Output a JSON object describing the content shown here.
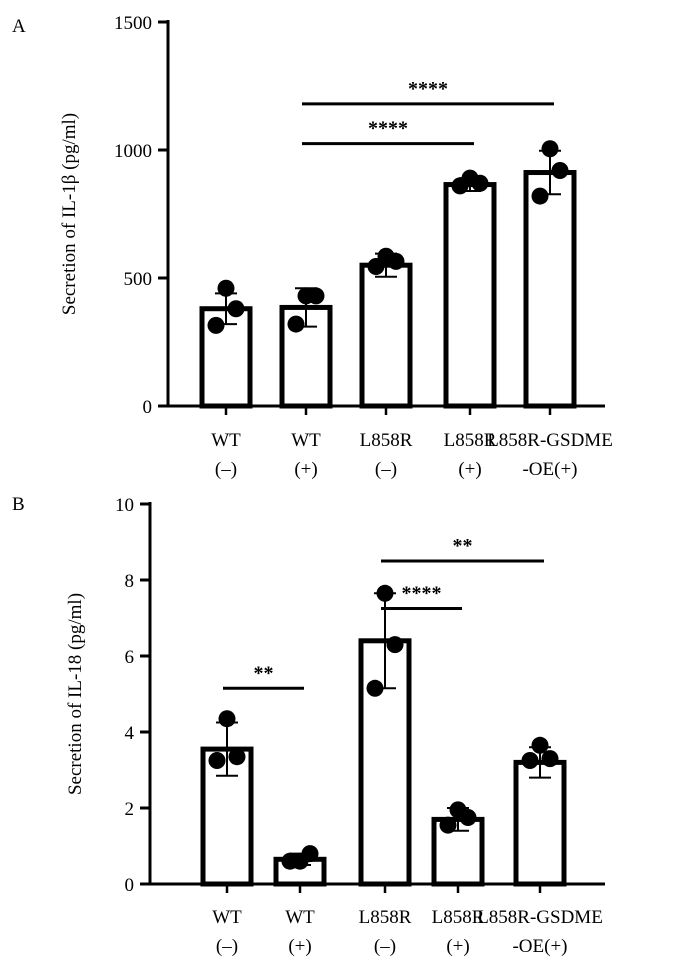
{
  "chart_data": [
    {
      "panel": "A",
      "type": "bar",
      "ylabel": "Secretion of IL-1β (pg/ml)",
      "ylim": [
        0,
        1500
      ],
      "yticks": [
        0,
        500,
        1000,
        1500
      ],
      "categories": [
        {
          "line1": "WT",
          "line2": "(–)"
        },
        {
          "line1": "WT",
          "line2": "(+)"
        },
        {
          "line1": "L858R",
          "line2": "(–)"
        },
        {
          "line1": "L858R",
          "line2": "(+)"
        },
        {
          "line1": "L858R-GSDME",
          "line2": "-OE(+)"
        }
      ],
      "values": [
        380,
        385,
        550,
        865,
        912
      ],
      "errors": [
        60,
        75,
        45,
        25,
        85
      ],
      "points": [
        [
          460,
          380,
          315
        ],
        [
          430,
          430,
          320
        ],
        [
          585,
          565,
          545
        ],
        [
          890,
          870,
          860
        ],
        [
          1005,
          920,
          820
        ]
      ],
      "significance": [
        {
          "from": 1,
          "to": 3,
          "label": "****",
          "y": 1025
        },
        {
          "from": 1,
          "to": 4,
          "label": "****",
          "y": 1180
        }
      ]
    },
    {
      "panel": "B",
      "type": "bar",
      "ylabel": "Secretion of IL-18 (pg/ml)",
      "ylim": [
        0,
        10
      ],
      "yticks": [
        0,
        2,
        4,
        6,
        8,
        10
      ],
      "categories": [
        {
          "line1": "WT",
          "line2": "(–)"
        },
        {
          "line1": "WT",
          "line2": "(+)"
        },
        {
          "line1": "L858R",
          "line2": "(–)"
        },
        {
          "line1": "L858R",
          "line2": "(+)"
        },
        {
          "line1": "L858R-GSDME",
          "line2": "-OE(+)"
        }
      ],
      "values": [
        3.55,
        0.65,
        6.4,
        1.7,
        3.2
      ],
      "errors": [
        0.7,
        0.15,
        1.25,
        0.3,
        0.4
      ],
      "points": [
        [
          4.35,
          3.35,
          3.25
        ],
        [
          0.6,
          0.8,
          0.6
        ],
        [
          7.65,
          6.3,
          5.15
        ],
        [
          1.95,
          1.75,
          1.55
        ],
        [
          3.65,
          3.3,
          3.25
        ]
      ],
      "significance": [
        {
          "from": 0,
          "to": 1,
          "label": "**",
          "y": 5.15
        },
        {
          "from": 2,
          "to": 3,
          "label": "****",
          "y": 7.25
        },
        {
          "from": 2,
          "to": 4,
          "label": "**",
          "y": 8.5
        }
      ]
    }
  ]
}
